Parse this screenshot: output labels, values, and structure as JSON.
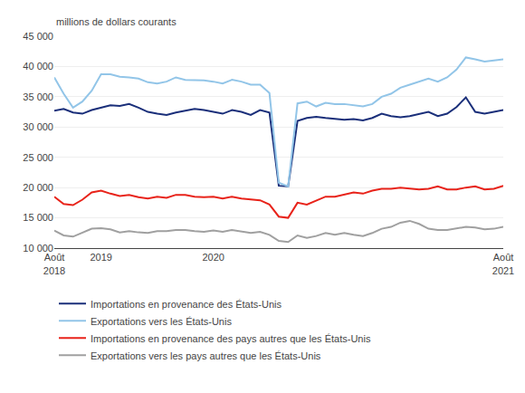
{
  "chart_data": {
    "type": "line",
    "y_label": "millions de dollars courants",
    "categories": [
      "Août\n2018",
      null,
      null,
      null,
      null,
      "2019",
      null,
      null,
      null,
      null,
      null,
      null,
      null,
      null,
      null,
      null,
      null,
      "2020",
      null,
      null,
      null,
      null,
      null,
      null,
      null,
      null,
      null,
      null,
      null,
      null,
      null,
      null,
      null,
      null,
      null,
      null,
      null,
      null,
      null,
      null,
      null,
      null,
      null,
      null,
      null,
      null,
      null,
      null,
      "Août\n2021"
    ],
    "series": [
      {
        "name": "Importations en provenance des États-Unis",
        "color": "#1a2f7a",
        "values": [
          32700,
          33000,
          32400,
          32200,
          32800,
          33200,
          33600,
          33500,
          33800,
          33200,
          32500,
          32200,
          32000,
          32400,
          32700,
          33000,
          32800,
          32500,
          32200,
          32800,
          32500,
          32000,
          32800,
          32400,
          20300,
          20200,
          31000,
          31500,
          31700,
          31500,
          31400,
          31200,
          31300,
          31100,
          31500,
          32200,
          31800,
          31600,
          31800,
          32100,
          32500,
          31800,
          32200,
          33300,
          34900,
          32500,
          32200,
          32500,
          32800
        ]
      },
      {
        "name": "Exportations vers les États-Unis",
        "color": "#92c5e8",
        "values": [
          38200,
          35500,
          33200,
          34200,
          36000,
          38700,
          38700,
          38300,
          38200,
          38000,
          37400,
          37200,
          37500,
          38200,
          37800,
          37800,
          37700,
          37500,
          37200,
          37800,
          37500,
          37000,
          37000,
          35600,
          20800,
          20200,
          33900,
          34200,
          33400,
          34000,
          33800,
          33800,
          33600,
          33400,
          33800,
          35000,
          35500,
          36500,
          37000,
          37500,
          38000,
          37500,
          38200,
          39500,
          41500,
          41200,
          40800,
          41000,
          41200
        ]
      },
      {
        "name": "Importations en provenance des pays autres que les États-Unis",
        "color": "#e8231a",
        "values": [
          18500,
          17300,
          17100,
          18000,
          19200,
          19500,
          19000,
          18600,
          18800,
          18400,
          18200,
          18500,
          18300,
          18800,
          18800,
          18500,
          18400,
          18500,
          18200,
          18500,
          18200,
          18000,
          17900,
          17200,
          15200,
          15000,
          17500,
          17200,
          17800,
          18500,
          18500,
          18800,
          19200,
          19000,
          19500,
          19800,
          19800,
          20000,
          19800,
          19700,
          19800,
          20200,
          19700,
          19700,
          20000,
          20200,
          19700,
          19800,
          20300
        ]
      },
      {
        "name": "Exportations vers les pays autres que les États-Unis",
        "color": "#a0a0a0",
        "values": [
          12900,
          12100,
          11900,
          12600,
          13200,
          13300,
          13100,
          12600,
          12800,
          12600,
          12500,
          12800,
          12800,
          13000,
          13000,
          12800,
          12700,
          12900,
          12700,
          13000,
          12700,
          12500,
          12700,
          12200,
          11200,
          11000,
          12100,
          11700,
          12000,
          12500,
          12200,
          12500,
          12200,
          12000,
          12500,
          13200,
          13500,
          14200,
          14500,
          14000,
          13200,
          13000,
          13000,
          13200,
          13500,
          13400,
          13100,
          13200,
          13500
        ]
      }
    ],
    "ylim": [
      10000,
      45000
    ],
    "yticks": [
      {
        "value": 10000,
        "label": "10 000"
      },
      {
        "value": 15000,
        "label": "15 000"
      },
      {
        "value": 20000,
        "label": "20 000"
      },
      {
        "value": 25000,
        "label": "25 000"
      },
      {
        "value": 30000,
        "label": "30 000"
      },
      {
        "value": 35000,
        "label": "35 000"
      },
      {
        "value": 40000,
        "label": "40 000"
      },
      {
        "value": 45000,
        "label": "45 000"
      }
    ],
    "grid": true,
    "legend": "below"
  }
}
